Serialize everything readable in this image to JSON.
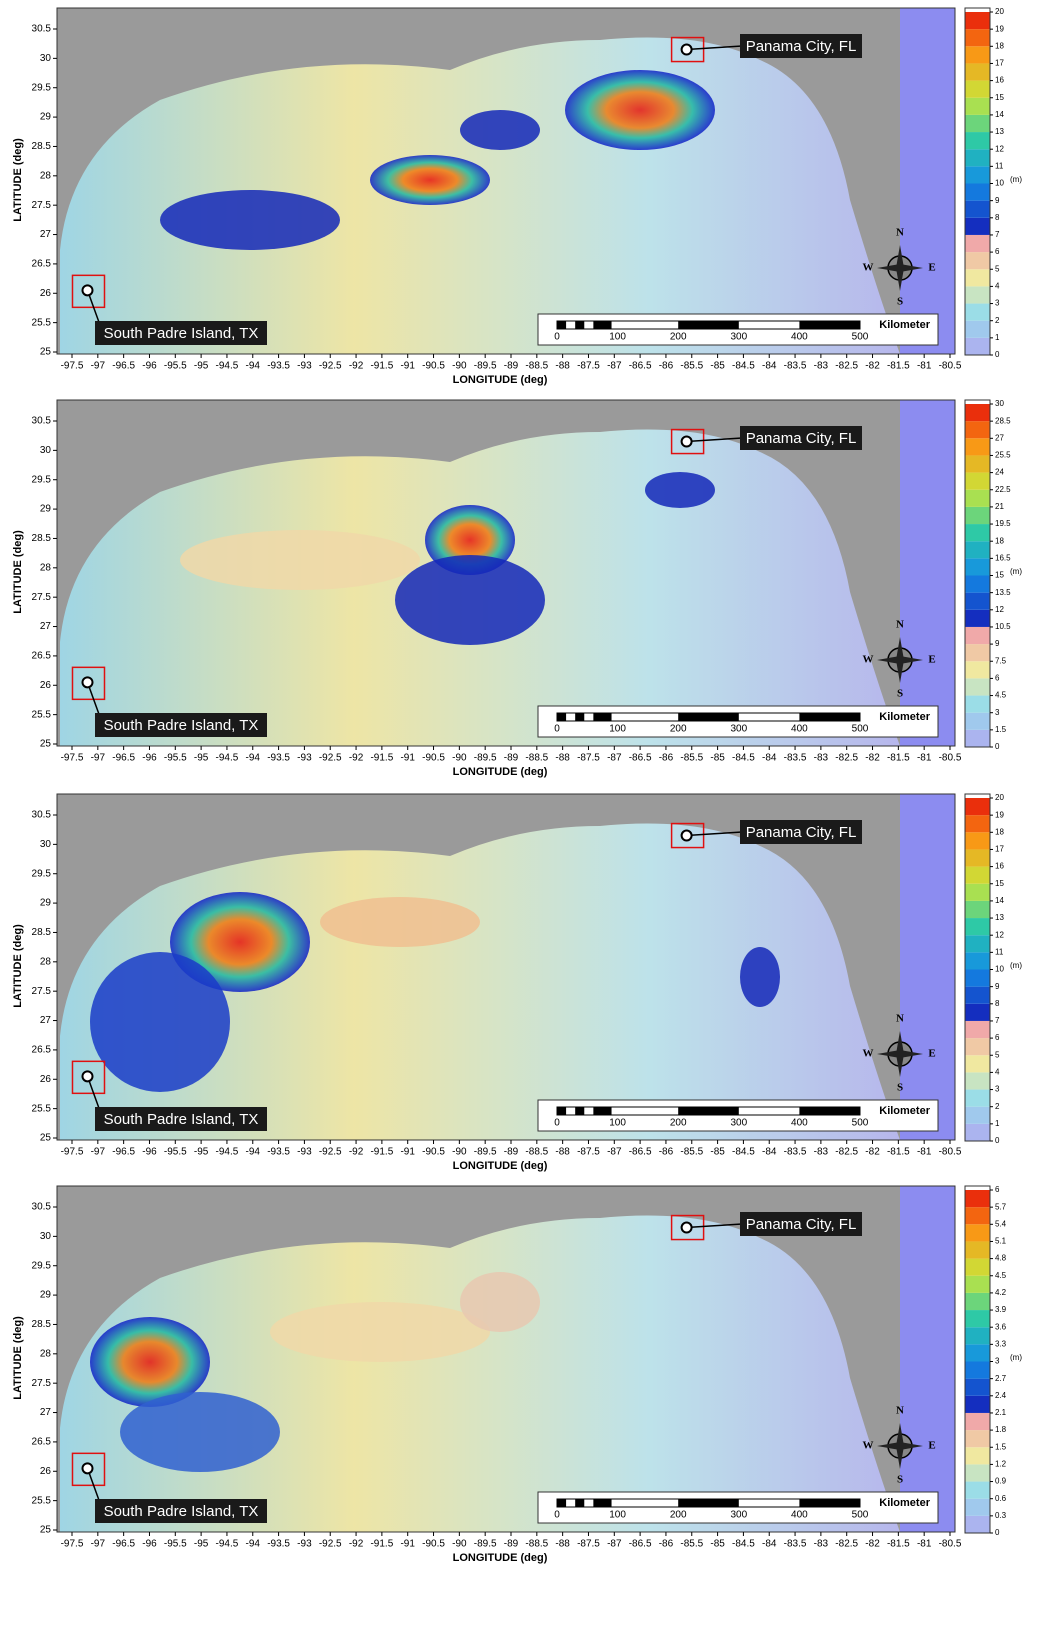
{
  "axes": {
    "x_label": "LONGITUDE (deg)",
    "y_label": "LATITUDE (deg)",
    "lon_ticks": [
      -97.5,
      -97,
      -96.5,
      -96,
      -95.5,
      -95,
      -94.5,
      -94,
      -93.5,
      -93,
      -92.5,
      -92,
      -91.5,
      -91,
      -90.5,
      -90,
      -89.5,
      -89,
      -88.5,
      -88,
      -87.5,
      -87,
      -86.5,
      -86,
      -85.5,
      -85,
      -84.5,
      -84,
      -83.5,
      -83,
      -82.5,
      -82,
      -81.5,
      -81,
      -80.5
    ],
    "lat_ticks": [
      25,
      25.5,
      26,
      26.5,
      27,
      27.5,
      28,
      28.5,
      29,
      29.5,
      30,
      30.5
    ]
  },
  "locations": [
    "Panama City, FL",
    "South Padre Island, TX"
  ],
  "compass": [
    "N",
    "E",
    "S",
    "W"
  ],
  "scale_bar": {
    "unit": "Kilometer",
    "ticks": [
      0,
      100,
      200,
      300,
      400,
      500
    ]
  },
  "panels": [
    {
      "colorbar_unit": "(m)",
      "colorbar_ticks": [
        0,
        1,
        2,
        3,
        4,
        5,
        6,
        7,
        8,
        9,
        10,
        11,
        12,
        13,
        14,
        15,
        16,
        17,
        18,
        19,
        20
      ]
    },
    {
      "colorbar_unit": "(m)",
      "colorbar_ticks": [
        0,
        1.5,
        3,
        4.5,
        6,
        7.5,
        9,
        10.5,
        12,
        13.5,
        15,
        16.5,
        18,
        19.5,
        21,
        22.5,
        24,
        25.5,
        27,
        28.5,
        30
      ]
    },
    {
      "colorbar_unit": "(m)",
      "colorbar_ticks": [
        0,
        1,
        2,
        3,
        4,
        5,
        6,
        7,
        8,
        9,
        10,
        11,
        12,
        13,
        14,
        15,
        16,
        17,
        18,
        19,
        20
      ]
    },
    {
      "colorbar_unit": "(m)",
      "colorbar_ticks": [
        0,
        0.3,
        0.6,
        0.9,
        1.2,
        1.5,
        1.8,
        2.1,
        2.4,
        2.7,
        3,
        3.3,
        3.6,
        3.9,
        4.2,
        4.5,
        4.8,
        5.1,
        5.4,
        5.7,
        6
      ]
    }
  ]
}
